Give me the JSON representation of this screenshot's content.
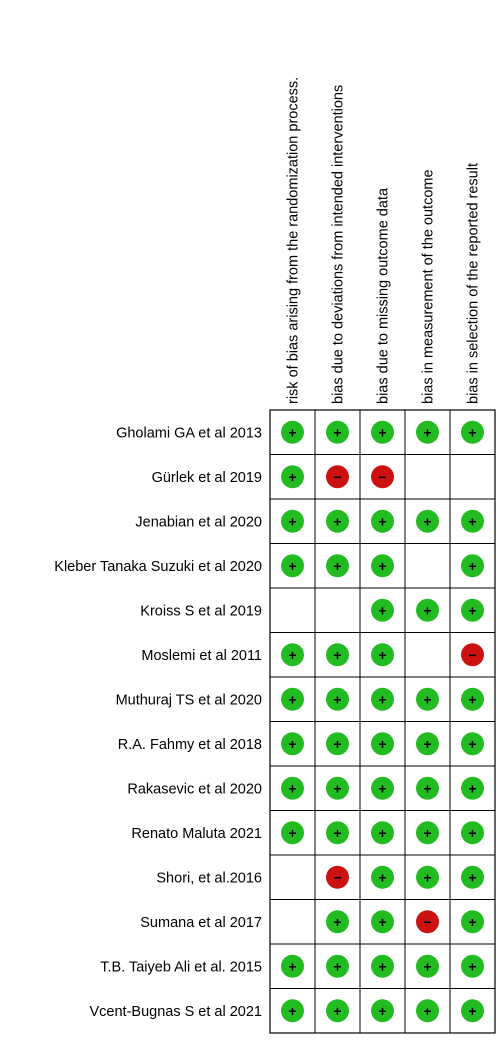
{
  "columns": [
    "risk of bias arising from the randomization process.",
    "bias due to deviations from intended interventions",
    "bias due to missing outcome data",
    "bias in measurement of the outcome",
    "bias in selection of the reported result"
  ],
  "rows": [
    {
      "study": "Gholami GA et al 2013",
      "ratings": [
        "low",
        "low",
        "low",
        "low",
        "low"
      ]
    },
    {
      "study": "Gürlek et al 2019",
      "ratings": [
        "low",
        "high",
        "high",
        "",
        ""
      ]
    },
    {
      "study": "Jenabian et al 2020",
      "ratings": [
        "low",
        "low",
        "low",
        "low",
        "low"
      ]
    },
    {
      "study": "Kleber Tanaka Suzuki et al 2020",
      "ratings": [
        "low",
        "low",
        "low",
        "",
        "low"
      ]
    },
    {
      "study": "Kroiss S et al  2019",
      "ratings": [
        "",
        "",
        "low",
        "low",
        "low"
      ]
    },
    {
      "study": "Moslemi et al 2011",
      "ratings": [
        "low",
        "low",
        "low",
        "",
        "high"
      ]
    },
    {
      "study": "Muthuraj TS et al  2020",
      "ratings": [
        "low",
        "low",
        "low",
        "low",
        "low"
      ]
    },
    {
      "study": "R.A. Fahmy et al  2018",
      "ratings": [
        "low",
        "low",
        "low",
        "low",
        "low"
      ]
    },
    {
      "study": "Rakasevic et al  2020",
      "ratings": [
        "low",
        "low",
        "low",
        "low",
        "low"
      ]
    },
    {
      "study": "Renato Maluta  2021",
      "ratings": [
        "low",
        "low",
        "low",
        "low",
        "low"
      ]
    },
    {
      "study": "Shori, et al.2016",
      "ratings": [
        "",
        "high",
        "low",
        "low",
        "low"
      ]
    },
    {
      "study": "Sumana et al  2017",
      "ratings": [
        "",
        "low",
        "low",
        "high",
        "low"
      ]
    },
    {
      "study": "T.B. Taiyeb Ali et al.  2015",
      "ratings": [
        "low",
        "low",
        "low",
        "low",
        "low"
      ]
    },
    {
      "study": "Vcent-Bugnas S et al  2021",
      "ratings": [
        "low",
        "low",
        "low",
        "low",
        "low"
      ]
    }
  ],
  "legend": {
    "low": {
      "symbol": "+",
      "color": "#22bb22"
    },
    "high": {
      "symbol": "−",
      "color": "#cc1111"
    }
  }
}
